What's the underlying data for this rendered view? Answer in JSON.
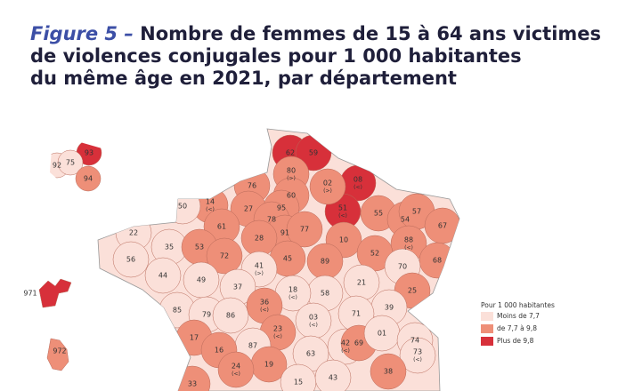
{
  "title_prefix": "Figure 5 –",
  "title_lines": [
    "Nombre de femmes de 15 à 64 ans victimes",
    "de violences conjugales pour 1 000 habitantes",
    "du même âge en 2021, par département"
  ],
  "legend": {
    "title": "Pour 1 000 habitantes",
    "classes": [
      {
        "label": "Moins de 7,7",
        "color": "#fbe0d9"
      },
      {
        "label": "de 7,7 à 9,8",
        "color": "#ee8f78"
      },
      {
        "label": "Plus de 9,8",
        "color": "#d7303a"
      }
    ]
  },
  "departments": [
    {
      "label": "62",
      "class": 2
    },
    {
      "label": "59",
      "class": 2
    },
    {
      "label": "08",
      "note": "(<)",
      "class": 2
    },
    {
      "label": "51",
      "note": "(<)",
      "class": 2
    },
    {
      "label": "02",
      "note": "(>)",
      "class": 1
    },
    {
      "label": "80",
      "note": "(>)",
      "class": 1
    },
    {
      "label": "76",
      "class": 1
    },
    {
      "label": "60",
      "class": 1
    },
    {
      "label": "27",
      "class": 1
    },
    {
      "label": "14",
      "note": "(<)",
      "class": 1
    },
    {
      "label": "50",
      "class": 0
    },
    {
      "label": "95",
      "class": 1
    },
    {
      "label": "78",
      "class": 1
    },
    {
      "label": "91",
      "class": 1
    },
    {
      "label": "77",
      "class": 1
    },
    {
      "label": "28",
      "class": 1
    },
    {
      "label": "61",
      "class": 1
    },
    {
      "label": "22",
      "class": 0
    },
    {
      "label": "35",
      "class": 0
    },
    {
      "label": "53",
      "class": 1
    },
    {
      "label": "72",
      "class": 1
    },
    {
      "label": "45",
      "class": 1
    },
    {
      "label": "10",
      "class": 1
    },
    {
      "label": "55",
      "class": 1
    },
    {
      "label": "54",
      "class": 1
    },
    {
      "label": "57",
      "class": 1
    },
    {
      "label": "67",
      "class": 1
    },
    {
      "label": "88",
      "note": "(<)",
      "class": 1
    },
    {
      "label": "52",
      "class": 1
    },
    {
      "label": "68",
      "class": 1
    },
    {
      "label": "89",
      "class": 1
    },
    {
      "label": "70",
      "class": 0
    },
    {
      "label": "21",
      "class": 0
    },
    {
      "label": "25",
      "class": 1
    },
    {
      "label": "39",
      "class": 0
    },
    {
      "label": "71",
      "class": 0
    },
    {
      "label": "58",
      "class": 0
    },
    {
      "label": "18",
      "note": "(<)",
      "class": 0
    },
    {
      "label": "41",
      "note": "(>)",
      "class": 0
    },
    {
      "label": "37",
      "class": 0
    },
    {
      "label": "49",
      "class": 0
    },
    {
      "label": "44",
      "class": 0
    },
    {
      "label": "56",
      "class": 0
    },
    {
      "label": "85",
      "class": 0
    },
    {
      "label": "79",
      "class": 0
    },
    {
      "label": "86",
      "class": 0
    },
    {
      "label": "36",
      "note": "(<)",
      "class": 1
    },
    {
      "label": "03",
      "note": "(<)",
      "class": 0
    },
    {
      "label": "23",
      "note": "(<)",
      "class": 1
    },
    {
      "label": "87",
      "class": 0
    },
    {
      "label": "17",
      "class": 1
    },
    {
      "label": "16",
      "class": 1
    },
    {
      "label": "63",
      "class": 0
    },
    {
      "label": "42",
      "note": "(<)",
      "class": 0
    },
    {
      "label": "69",
      "class": 1
    },
    {
      "label": "01",
      "class": 0
    },
    {
      "label": "74",
      "class": 0
    },
    {
      "label": "73",
      "note": "(<)",
      "class": 0
    },
    {
      "label": "38",
      "class": 1
    },
    {
      "label": "19",
      "class": 1
    },
    {
      "label": "24",
      "note": "(<)",
      "class": 1
    },
    {
      "label": "33",
      "class": 1
    },
    {
      "label": "15",
      "class": 0
    },
    {
      "label": "43",
      "class": 0
    },
    {
      "label": "93",
      "class": 2
    },
    {
      "label": "92",
      "class": 0
    },
    {
      "label": "75",
      "class": 0
    },
    {
      "label": "94",
      "class": 1
    },
    {
      "label": "971",
      "class": 2
    },
    {
      "label": "972",
      "class": 1
    }
  ]
}
